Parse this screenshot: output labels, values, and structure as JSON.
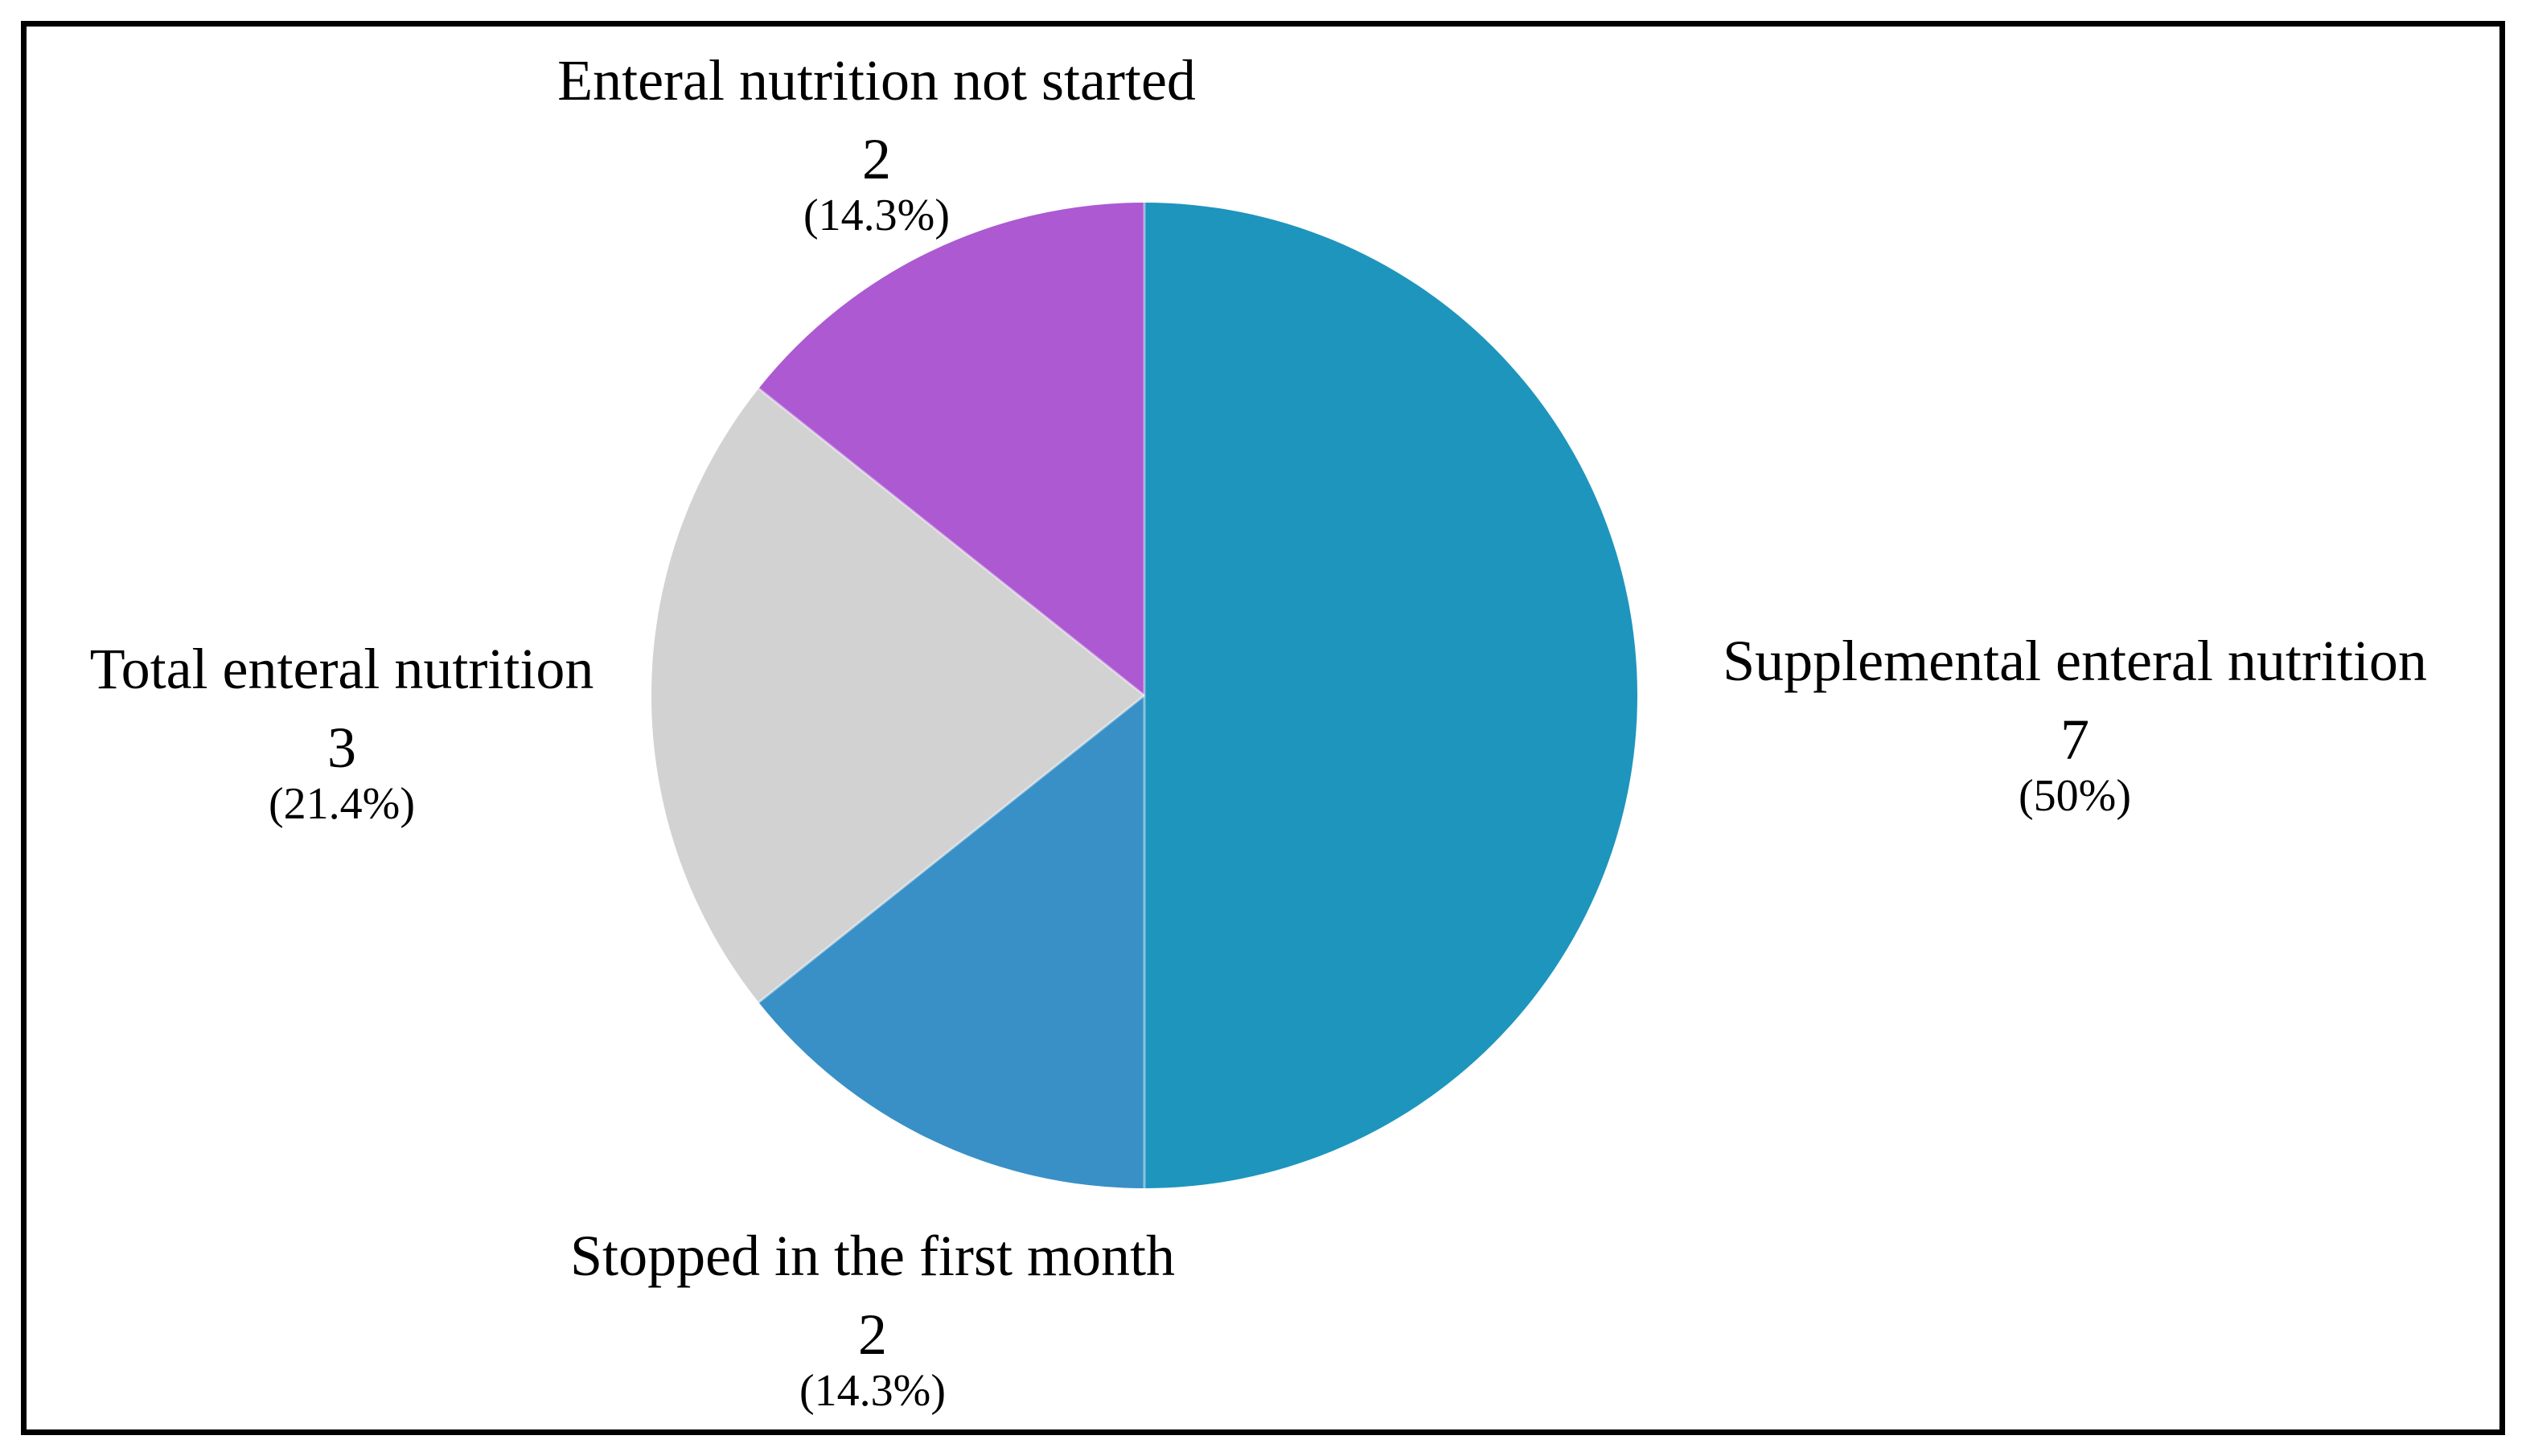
{
  "figure": {
    "background_color": "#ffffff",
    "frame_color": "#000000"
  },
  "chart_data": {
    "type": "pie",
    "start_angle": "12-oclock",
    "direction": "clockwise",
    "categories": [
      "Supplemental enteral nutrition",
      "Stopped in the first month",
      "Total enteral nutrition",
      "Enteral nutrition not started"
    ],
    "values": [
      7,
      2,
      3,
      2
    ],
    "percent_labels": [
      "(50%)",
      "(14.3%)",
      "(21.4%)",
      "(14.3%)"
    ],
    "separator_line_color": "rgba(255,255,255,0.45)",
    "slices": [
      {
        "name": "Supplemental enteral nutrition",
        "value": "7",
        "pct": "(50%)",
        "fraction": 0.5,
        "color": "#1E95BD",
        "slug": "supplemental-enteral-nutrition"
      },
      {
        "name": "Stopped in the first month",
        "value": "2",
        "pct": "(14.3%)",
        "fraction": 0.143,
        "color": "#3890C6",
        "slug": "stopped-in-the-first-month"
      },
      {
        "name": "Total enteral nutrition",
        "value": "3",
        "pct": "(21.4%)",
        "fraction": 0.214,
        "color": "#D2D2D2",
        "slug": "total-enteral-nutrition"
      },
      {
        "name": "Enteral nutrition not started",
        "value": "2",
        "pct": "(14.3%)",
        "fraction": 0.143,
        "color": "#AC59D2",
        "slug": "enteral-nutrition-not-started"
      }
    ]
  }
}
